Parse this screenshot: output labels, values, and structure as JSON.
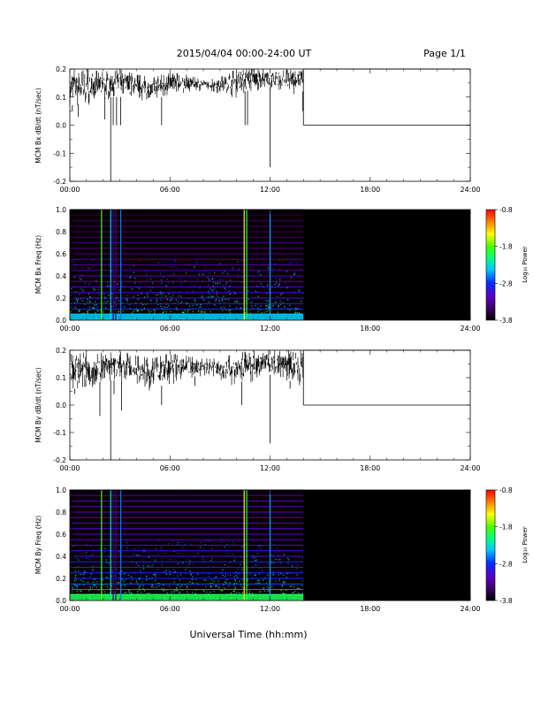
{
  "header": {
    "title": "2015/04/04  00:00-24:00 UT",
    "page": "Page 1/1"
  },
  "colors": {
    "trace": "#000000",
    "spectrogram_background": "#0a0008",
    "colorbar": [
      "#000000",
      "#3b0060",
      "#5a00c8",
      "#0030ff",
      "#00c8ff",
      "#00ff80",
      "#40ff00",
      "#ffff00",
      "#ff8000",
      "#ff0000"
    ]
  },
  "chart_data": [
    {
      "type": "line",
      "ylabel": "MCM Bx dB/dt (nT/sec)",
      "xlim": [
        "00:00",
        "24:00"
      ],
      "xticks": [
        "00:00",
        "06:00",
        "12:00",
        "18:00",
        "24:00"
      ],
      "ylim": [
        -0.2,
        0.2
      ],
      "yticks": [
        "-0.2",
        "-0.1",
        "0.0",
        "0.1",
        "0.2"
      ],
      "envelope_hours": [
        0,
        1,
        2,
        3,
        4,
        5,
        6,
        7,
        8,
        9,
        10,
        11,
        12,
        13,
        14
      ],
      "envelope_upper": [
        0.2,
        0.2,
        0.19,
        0.2,
        0.18,
        0.17,
        0.19,
        0.18,
        0.16,
        0.17,
        0.2,
        0.2,
        0.2,
        0.2,
        0.2
      ],
      "envelope_lower": [
        0.07,
        0.08,
        0.1,
        0.1,
        0.1,
        0.09,
        0.11,
        0.12,
        0.13,
        0.12,
        0.11,
        0.13,
        0.13,
        0.12,
        0.12
      ],
      "spikes": [
        {
          "hour": 0.15,
          "value": 0.05
        },
        {
          "hour": 0.5,
          "value": 0.03
        },
        {
          "hour": 2.1,
          "value": 0.02
        },
        {
          "hour": 2.45,
          "value": -0.2
        },
        {
          "hour": 2.6,
          "value": 0.0
        },
        {
          "hour": 2.8,
          "value": 0.0
        },
        {
          "hour": 3.05,
          "value": 0.0
        },
        {
          "hour": 5.5,
          "value": 0.0
        },
        {
          "hour": 10.5,
          "value": 0.0
        },
        {
          "hour": 10.65,
          "value": 0.0
        },
        {
          "hour": 12.0,
          "value": -0.15
        },
        {
          "hour": 13.95,
          "value": 0.05
        }
      ],
      "data_end_hour": 14.0,
      "after_gap_value": 0.0,
      "gap_top_value": 0.2
    },
    {
      "type": "heatmap",
      "ylabel": "MCM Bx Freq (Hz)",
      "xlim": [
        "00:00",
        "24:00"
      ],
      "xticks": [
        "00:00",
        "06:00",
        "12:00",
        "18:00",
        "24:00"
      ],
      "ylim": [
        0.0,
        1.0
      ],
      "yticks": [
        "0.0",
        "0.2",
        "0.4",
        "0.6",
        "0.8",
        "1.0"
      ],
      "data_end_hour": 14.0,
      "harmonic_freqs": [
        0.05,
        0.1,
        0.15,
        0.2,
        0.25,
        0.3,
        0.35,
        0.4,
        0.45,
        0.5,
        0.55,
        0.6,
        0.65,
        0.7,
        0.75,
        0.8,
        0.85,
        0.9,
        0.95,
        1.0
      ],
      "harmonic_log_power": [
        -2.6,
        -2.8,
        -2.9,
        -3.0,
        -3.1,
        -3.1,
        -3.2,
        -3.2,
        -3.3,
        -3.3,
        -3.3,
        -3.4,
        -3.4,
        -3.4,
        -3.5,
        -3.5,
        -3.5,
        -3.5,
        -3.6,
        -3.6
      ],
      "vertical_lines": [
        {
          "hour": 1.9,
          "log_power": -1.8
        },
        {
          "hour": 2.45,
          "log_power": -2.4
        },
        {
          "hour": 2.6,
          "log_power": -3.4
        },
        {
          "hour": 2.75,
          "log_power": -3.4
        },
        {
          "hour": 3.05,
          "log_power": -2.6
        },
        {
          "hour": 10.45,
          "log_power": -1.5
        },
        {
          "hour": 10.6,
          "log_power": -2.0
        },
        {
          "hour": 12.0,
          "log_power": -2.5
        }
      ],
      "low_freq_band": {
        "max_freq": 0.06,
        "log_power": -2.4
      },
      "colorbar": {
        "label": "Log₁₀ Power",
        "min": -3.8,
        "max": -0.8,
        "ticks": [
          "-0.8",
          "-1.8",
          "-2.8",
          "-3.8"
        ]
      }
    },
    {
      "type": "line",
      "ylabel": "MCM By dB/dt (nT/sec)",
      "xlim": [
        "00:00",
        "24:00"
      ],
      "xticks": [
        "00:00",
        "06:00",
        "12:00",
        "18:00",
        "24:00"
      ],
      "ylim": [
        -0.2,
        0.2
      ],
      "yticks": [
        "-0.2",
        "-0.1",
        "0.0",
        "0.1",
        "0.2"
      ],
      "envelope_hours": [
        0,
        1,
        2,
        3,
        4,
        5,
        6,
        7,
        8,
        9,
        10,
        11,
        12,
        13,
        14
      ],
      "envelope_upper": [
        0.2,
        0.2,
        0.19,
        0.2,
        0.18,
        0.17,
        0.19,
        0.18,
        0.17,
        0.17,
        0.19,
        0.2,
        0.2,
        0.2,
        0.2
      ],
      "envelope_lower": [
        0.06,
        0.06,
        0.09,
        0.09,
        0.08,
        0.05,
        0.09,
        0.1,
        0.11,
        0.1,
        0.08,
        0.1,
        0.11,
        0.09,
        0.08
      ],
      "spikes": [
        {
          "hour": 0.3,
          "value": 0.04
        },
        {
          "hour": 1.8,
          "value": -0.04
        },
        {
          "hour": 2.45,
          "value": -0.2
        },
        {
          "hour": 2.65,
          "value": 0.04
        },
        {
          "hour": 3.1,
          "value": -0.02
        },
        {
          "hour": 5.5,
          "value": 0.0
        },
        {
          "hour": 7.5,
          "value": 0.07
        },
        {
          "hour": 10.3,
          "value": 0.0
        },
        {
          "hour": 12.0,
          "value": -0.14
        },
        {
          "hour": 13.2,
          "value": 0.06
        }
      ],
      "data_end_hour": 14.0,
      "after_gap_value": 0.0,
      "gap_top_value": 0.2
    },
    {
      "type": "heatmap",
      "ylabel": "MCM By Freq (Hz)",
      "xlim": [
        "00:00",
        "24:00"
      ],
      "xticks": [
        "00:00",
        "06:00",
        "12:00",
        "18:00",
        "24:00"
      ],
      "xlabel": "Universal Time (hh:mm)",
      "ylim": [
        0.0,
        1.0
      ],
      "yticks": [
        "0.0",
        "0.2",
        "0.4",
        "0.6",
        "0.8",
        "1.0"
      ],
      "data_end_hour": 14.0,
      "harmonic_freqs": [
        0.05,
        0.1,
        0.15,
        0.2,
        0.25,
        0.3,
        0.35,
        0.4,
        0.45,
        0.5,
        0.55,
        0.6,
        0.65,
        0.7,
        0.75,
        0.8,
        0.85,
        0.9,
        0.95,
        1.0
      ],
      "harmonic_log_power": [
        -2.4,
        -2.6,
        -2.7,
        -2.8,
        -2.8,
        -2.9,
        -2.9,
        -3.0,
        -3.0,
        -3.0,
        -3.1,
        -3.1,
        -3.1,
        -3.1,
        -3.2,
        -3.2,
        -3.2,
        -3.2,
        -3.3,
        -3.3
      ],
      "vertical_lines": [
        {
          "hour": 1.9,
          "log_power": -1.8
        },
        {
          "hour": 2.45,
          "log_power": -2.2
        },
        {
          "hour": 2.6,
          "log_power": -3.4
        },
        {
          "hour": 2.75,
          "log_power": -3.4
        },
        {
          "hour": 3.05,
          "log_power": -2.6
        },
        {
          "hour": 10.45,
          "log_power": -1.5
        },
        {
          "hour": 10.6,
          "log_power": -2.0
        },
        {
          "hour": 12.0,
          "log_power": -2.5
        }
      ],
      "low_freq_band": {
        "max_freq": 0.06,
        "log_power": -2.0
      },
      "colorbar": {
        "label": "Log₁₀ Power",
        "min": -3.8,
        "max": -0.8,
        "ticks": [
          "-0.8",
          "-1.8",
          "-2.8",
          "-3.8"
        ]
      }
    }
  ]
}
